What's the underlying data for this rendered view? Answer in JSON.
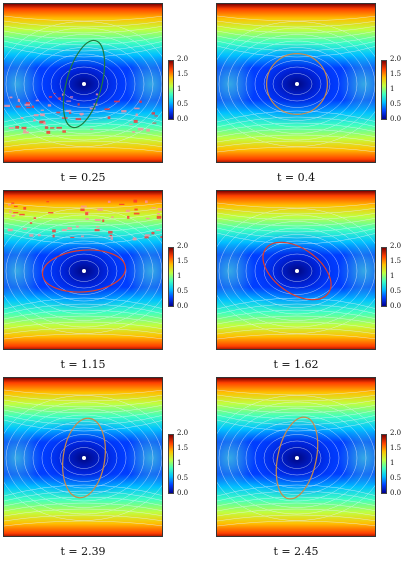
{
  "figure": {
    "colorbar_ticks": [
      "2.0",
      "1.5",
      "1",
      "0.5",
      "0.0"
    ],
    "colormap": [
      "#00008f",
      "#0040ff",
      "#00c0ff",
      "#40ffbf",
      "#c0ff40",
      "#ffbf00",
      "#ff4000",
      "#800000"
    ],
    "panels": [
      {
        "caption": "t = 0.25",
        "ring_color": "#1e7a3c",
        "ring_rotation_deg": 15,
        "ring_rx": 0.11,
        "ring_ry": 0.28,
        "noise": true
      },
      {
        "caption": "t = 0.4",
        "ring_color": "#c98a4a",
        "ring_rotation_deg": 0,
        "ring_rx": 0.19,
        "ring_ry": 0.19,
        "noise": false
      },
      {
        "caption": "t = 1.15",
        "ring_color": "#e03b2b",
        "ring_rotation_deg": -5,
        "ring_rx": 0.26,
        "ring_ry": 0.13,
        "noise": true
      },
      {
        "caption": "t = 1.62",
        "ring_color": "#e03b2b",
        "ring_rotation_deg": 35,
        "ring_rx": 0.24,
        "ring_ry": 0.14,
        "noise": false
      },
      {
        "caption": "t = 2.39",
        "ring_color": "#c98a4a",
        "ring_rotation_deg": 8,
        "ring_rx": 0.13,
        "ring_ry": 0.25,
        "noise": false
      },
      {
        "caption": "t = 2.45",
        "ring_color": "#c98a4a",
        "ring_rotation_deg": 12,
        "ring_rx": 0.12,
        "ring_ry": 0.26,
        "noise": false
      }
    ]
  }
}
